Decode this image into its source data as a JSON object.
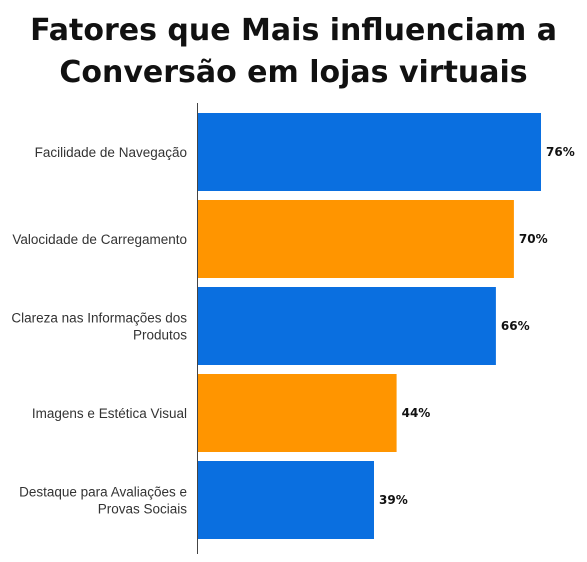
{
  "chart_data": {
    "type": "bar",
    "orientation": "horizontal",
    "title_lines": [
      "Fatores que Mais influenciam a",
      "Conversão em lojas virtuais"
    ],
    "categories": [
      "Facilidade de Navegação",
      "Valocidade de Carregamento",
      "Clareza nas Informações dos Produtos",
      "Imagens e Estética Visual",
      "Destaque para Avaliações e Provas Sociais"
    ],
    "category_label_lines": [
      [
        "Facilidade de Navegação"
      ],
      [
        "Valocidade de Carregamento"
      ],
      [
        "Clareza nas Informações dos",
        "Produtos"
      ],
      [
        "Imagens e Estética Visual"
      ],
      [
        "Destaque para Avaliações e",
        "Provas Sociais"
      ]
    ],
    "values": [
      76,
      70,
      66,
      44,
      39
    ],
    "value_labels": [
      "76%",
      "70%",
      "66%",
      "44%",
      "39%"
    ],
    "bar_colors": [
      "#0a6fe0",
      "#ff9500",
      "#0a6fe0",
      "#ff9500",
      "#0a6fe0"
    ],
    "xlim": [
      0,
      76
    ],
    "grid": false,
    "legend": "none"
  }
}
